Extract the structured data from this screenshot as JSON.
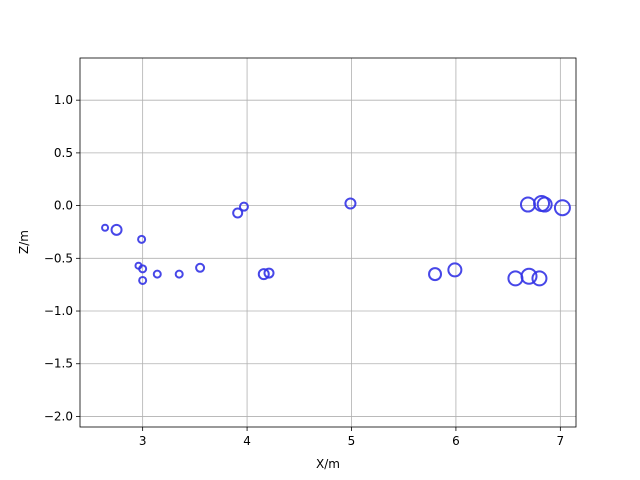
{
  "chart_data": {
    "type": "scatter",
    "title": "",
    "xlabel": "X/m",
    "ylabel": "Z/m",
    "xlim": [
      2.4,
      7.15
    ],
    "ylim": [
      -2.1,
      1.4
    ],
    "xticks": [
      3,
      4,
      5,
      6,
      7
    ],
    "xtick_labels": [
      "3",
      "4",
      "5",
      "6",
      "7"
    ],
    "yticks": [
      1.0,
      0.5,
      0.0,
      -0.5,
      -1.0,
      -1.5,
      -2.0
    ],
    "ytick_labels": [
      "1.0",
      "0.5",
      "0.0",
      "−0.5",
      "−1.0",
      "−1.5",
      "−2.0"
    ],
    "grid": true,
    "marker": "hollow-circle",
    "marker_color": "#3333e6",
    "points": [
      {
        "x": 2.64,
        "y": -0.21,
        "size": 3
      },
      {
        "x": 2.75,
        "y": -0.23,
        "size": 5
      },
      {
        "x": 2.99,
        "y": -0.32,
        "size": 3.5
      },
      {
        "x": 2.96,
        "y": -0.57,
        "size": 3
      },
      {
        "x": 3.0,
        "y": -0.6,
        "size": 3.5
      },
      {
        "x": 3.0,
        "y": -0.71,
        "size": 3.5
      },
      {
        "x": 3.14,
        "y": -0.65,
        "size": 3.5
      },
      {
        "x": 3.35,
        "y": -0.65,
        "size": 3.5
      },
      {
        "x": 3.55,
        "y": -0.59,
        "size": 4
      },
      {
        "x": 3.91,
        "y": -0.07,
        "size": 4.5
      },
      {
        "x": 3.97,
        "y": -0.01,
        "size": 4
      },
      {
        "x": 4.16,
        "y": -0.65,
        "size": 5
      },
      {
        "x": 4.21,
        "y": -0.64,
        "size": 4.5
      },
      {
        "x": 4.99,
        "y": 0.02,
        "size": 5
      },
      {
        "x": 5.8,
        "y": -0.65,
        "size": 6
      },
      {
        "x": 5.99,
        "y": -0.61,
        "size": 6.5
      },
      {
        "x": 6.57,
        "y": -0.69,
        "size": 7
      },
      {
        "x": 6.7,
        "y": -0.67,
        "size": 7.5
      },
      {
        "x": 6.8,
        "y": -0.69,
        "size": 7
      },
      {
        "x": 6.69,
        "y": 0.01,
        "size": 7
      },
      {
        "x": 6.82,
        "y": 0.02,
        "size": 7.5
      },
      {
        "x": 6.85,
        "y": 0.01,
        "size": 7
      },
      {
        "x": 7.02,
        "y": -0.02,
        "size": 7.5
      }
    ]
  }
}
